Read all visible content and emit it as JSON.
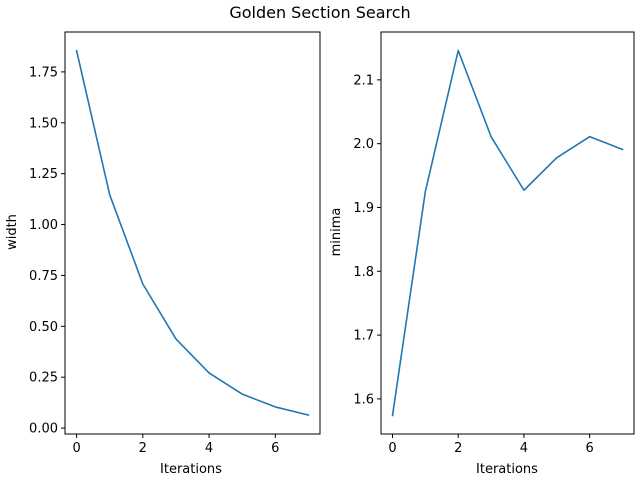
{
  "figure": {
    "title": "Golden Section Search"
  },
  "colors": {
    "series": "#1f77b4",
    "axes": "#000000",
    "background": "#ffffff"
  },
  "chart_data": [
    {
      "type": "line",
      "title": "",
      "xlabel": "Iterations",
      "ylabel": "width",
      "x": [
        0,
        1,
        2,
        3,
        4,
        5,
        6,
        7
      ],
      "series": [
        {
          "values": [
            1.854,
            1.146,
            0.708,
            0.438,
            0.271,
            0.167,
            0.104,
            0.064
          ]
        }
      ],
      "xlim": [
        -0.35,
        7.35
      ],
      "ylim": [
        -0.029,
        1.946
      ],
      "xticks": [
        0,
        2,
        4,
        6
      ],
      "xtick_labels": [
        "0",
        "2",
        "4",
        "6"
      ],
      "yticks": [
        0.0,
        0.25,
        0.5,
        0.75,
        1.0,
        1.25,
        1.5,
        1.75
      ],
      "ytick_labels": [
        "0.00",
        "0.25",
        "0.50",
        "0.75",
        "1.00",
        "1.25",
        "1.50",
        "1.75"
      ],
      "grid": false,
      "legend": "none"
    },
    {
      "type": "line",
      "title": "",
      "xlabel": "Iterations",
      "ylabel": "minima",
      "x": [
        0,
        1,
        2,
        3,
        4,
        5,
        6,
        7
      ],
      "series": [
        {
          "values": [
            1.574,
            1.925,
            2.146,
            2.011,
            1.927,
            1.978,
            2.011,
            1.991
          ]
        }
      ],
      "xlim": [
        -0.35,
        7.35
      ],
      "ylim": [
        1.545,
        2.175
      ],
      "xticks": [
        0,
        2,
        4,
        6
      ],
      "xtick_labels": [
        "0",
        "2",
        "4",
        "6"
      ],
      "yticks": [
        1.6,
        1.7,
        1.8,
        1.9,
        2.0,
        2.1
      ],
      "ytick_labels": [
        "1.6",
        "1.7",
        "1.8",
        "1.9",
        "2.0",
        "2.1"
      ],
      "grid": false,
      "legend": "none"
    }
  ]
}
